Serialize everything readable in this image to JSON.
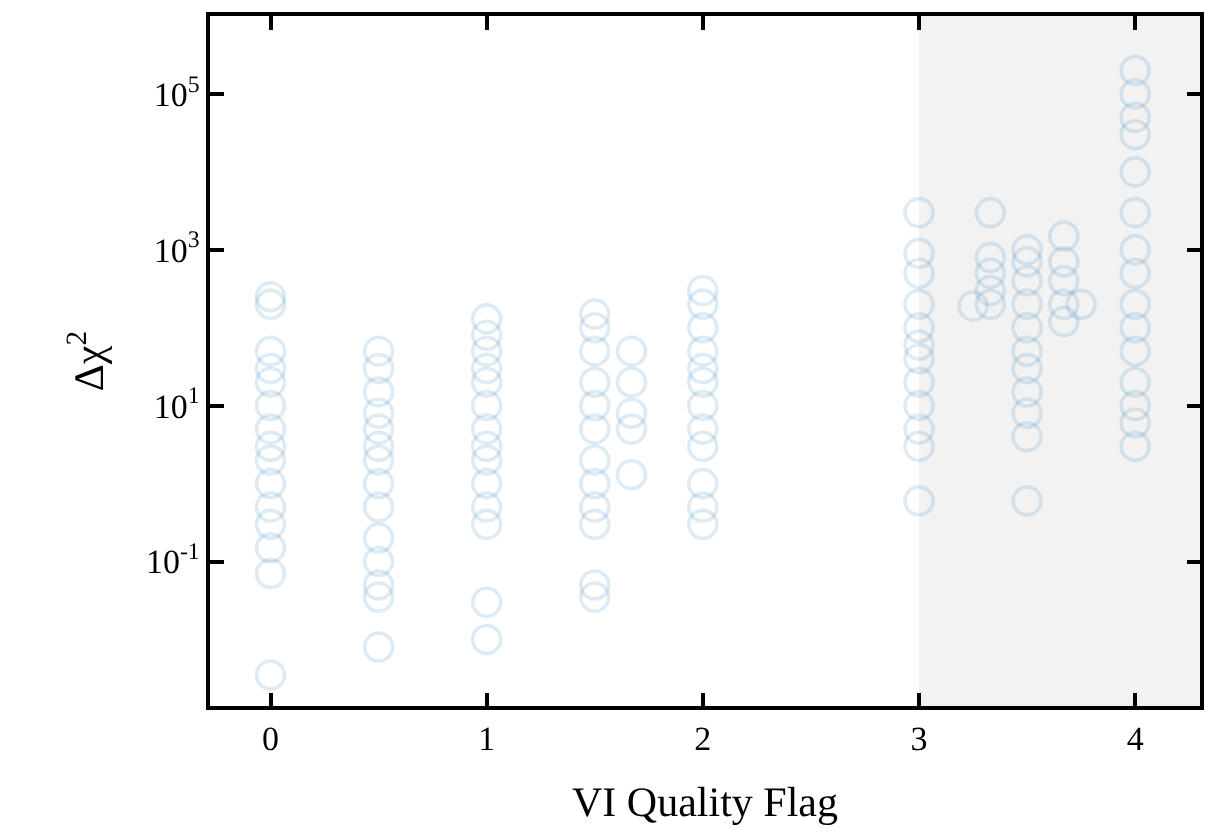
{
  "chart_data": {
    "type": "scatter",
    "xlabel": "VI Quality Flag",
    "ylabel": "Δχ$^{2}$",
    "log": "y",
    "grid": false,
    "marker": "circle",
    "xlim": [
      -0.28,
      4.3
    ],
    "xticks": [
      0,
      1,
      2,
      3,
      4
    ],
    "ylim": [
      0.0014,
      1000000
    ],
    "yticks": [
      {
        "value": 0.1,
        "label": "10$^{-1}$"
      },
      {
        "value": 10,
        "label": "10$^{1}$"
      },
      {
        "value": 1000,
        "label": "10$^{3}$"
      },
      {
        "value": 100000,
        "label": "10$^{5}$"
      }
    ],
    "bands": [
      {
        "axis": "x",
        "from": 3,
        "to": 4.3,
        "color": "#f2f2f2"
      }
    ],
    "series": [
      {
        "color": "#1f77b4",
        "x": [
          0,
          0,
          0,
          0,
          0,
          0,
          0,
          0,
          0,
          0,
          0,
          0,
          0,
          0,
          0,
          0.5,
          0.5,
          0.5,
          0.5,
          0.5,
          0.5,
          0.5,
          0.5,
          0.5,
          0.5,
          0.5,
          0.5,
          0.5,
          0.5,
          1,
          1,
          1,
          1,
          1,
          1,
          1,
          1,
          1,
          1,
          1,
          1,
          1,
          1,
          1.5,
          1.5,
          1.5,
          1.5,
          1.5,
          1.5,
          1.5,
          1.5,
          1.5,
          1.5,
          1.5,
          1.5,
          1.67,
          1.67,
          1.67,
          1.67,
          1.67,
          2,
          2,
          2,
          2,
          2,
          2,
          2,
          2,
          2,
          2,
          2,
          2,
          3,
          3,
          3,
          3,
          3,
          3,
          3,
          3,
          3,
          3,
          3,
          3,
          3.25,
          3.33,
          3.33,
          3.33,
          3.33,
          3.33,
          3.5,
          3.5,
          3.5,
          3.5,
          3.5,
          3.5,
          3.5,
          3.5,
          3.5,
          3.5,
          3.5,
          3.67,
          3.67,
          3.67,
          3.67,
          3.67,
          3.75,
          4,
          4,
          4,
          4,
          4,
          4,
          4,
          4,
          4,
          4,
          4,
          4,
          4,
          4,
          4
        ],
        "values": [
          250,
          200,
          50,
          30,
          20,
          10,
          5,
          3,
          2,
          1,
          0.5,
          0.3,
          0.15,
          0.07,
          0.0035,
          50,
          30,
          15,
          8,
          5,
          3,
          2,
          1,
          0.5,
          0.2,
          0.1,
          0.05,
          0.035,
          0.008,
          130,
          80,
          50,
          30,
          20,
          10,
          5,
          3,
          2,
          1,
          0.5,
          0.3,
          0.03,
          0.01,
          150,
          100,
          50,
          20,
          10,
          5,
          2,
          1,
          0.5,
          0.3,
          0.05,
          0.035,
          50,
          20,
          8,
          5,
          1.3,
          300,
          200,
          100,
          50,
          30,
          20,
          10,
          5,
          3,
          1,
          0.5,
          0.3,
          3000,
          900,
          500,
          200,
          100,
          60,
          40,
          20,
          10,
          5,
          3,
          0.6,
          190,
          3000,
          800,
          500,
          300,
          200,
          1000,
          700,
          400,
          200,
          100,
          50,
          30,
          15,
          8,
          4,
          0.6,
          1500,
          700,
          400,
          200,
          120,
          200,
          200000,
          100000,
          50000,
          30000,
          10000,
          3000,
          1000,
          500,
          200,
          100,
          50,
          20,
          10,
          6,
          3
        ]
      }
    ]
  }
}
